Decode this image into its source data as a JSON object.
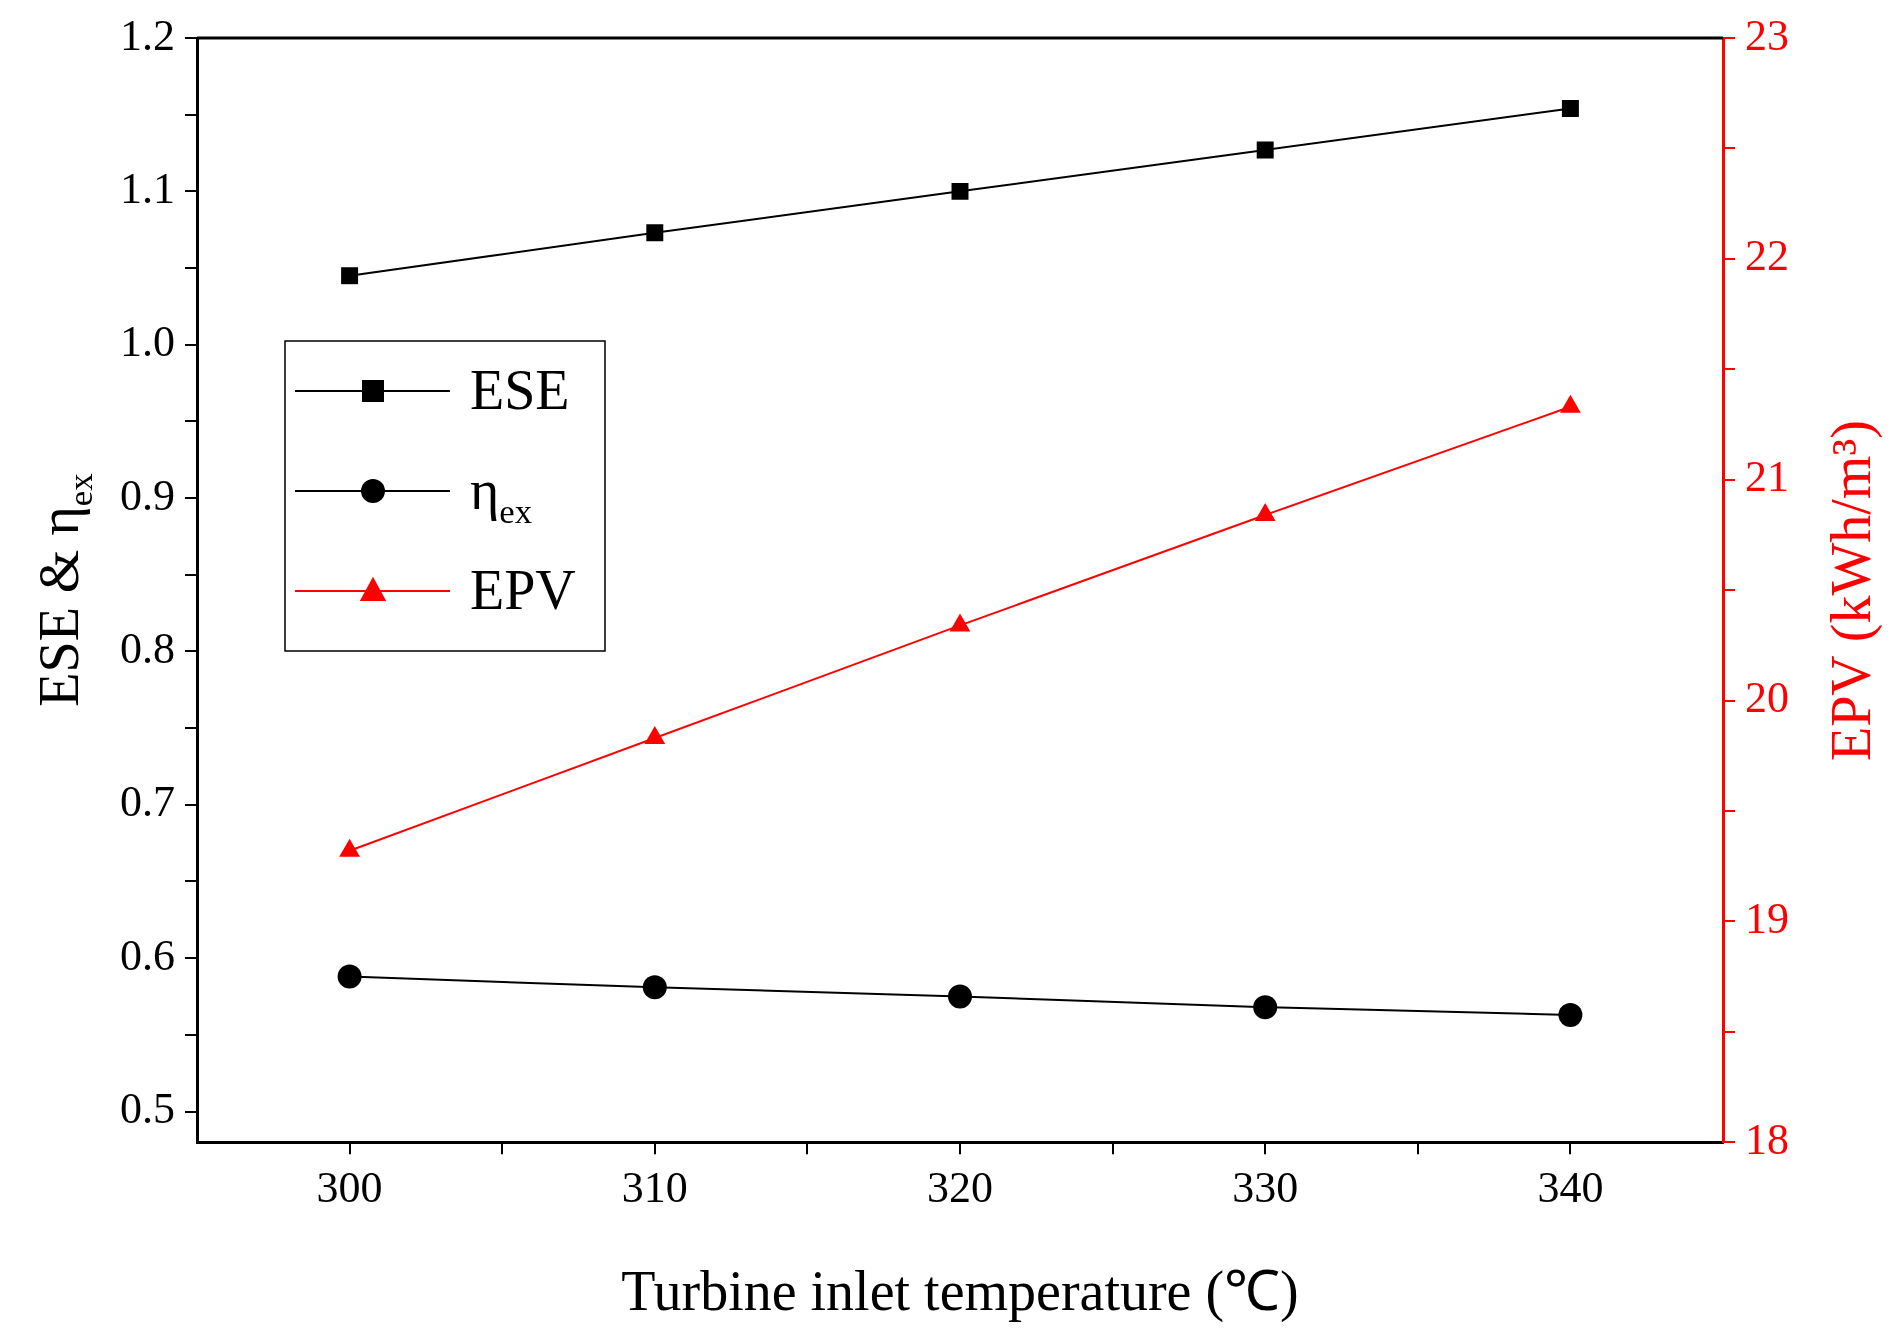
{
  "chart_data": {
    "type": "line",
    "xlabel": "Turbine inlet temperature (℃)",
    "ylabel": "ESE & η$_{ex}$",
    "y2label": "EPV (kWh/m³)",
    "x": [
      300,
      310,
      320,
      330,
      340
    ],
    "series": [
      {
        "name": "ESE",
        "color": "#000000",
        "marker": "square",
        "values": [
          1.045,
          1.073,
          1.1,
          1.127,
          1.154
        ]
      },
      {
        "name": "η$_{ex}$",
        "color": "#000000",
        "marker": "circle",
        "values": [
          0.588,
          0.581,
          0.575,
          0.568,
          0.563
        ]
      },
      {
        "name": "EPV",
        "color": "#ff0000",
        "marker": "triangle",
        "axis": "y2",
        "values": [
          19.32,
          19.83,
          20.34,
          20.84,
          21.33
        ]
      }
    ],
    "xlim": [
      295,
      345
    ],
    "xticks": [
      300,
      {
        "value": 305,
        "label": null
      },
      310,
      {
        "value": 315,
        "label": null
      },
      320,
      {
        "value": 325,
        "label": null
      },
      330,
      {
        "value": 335,
        "label": null
      },
      340
    ],
    "ylim": [
      0.48,
      1.2
    ],
    "yticks": [
      0.5,
      {
        "value": 0.55,
        "label": null
      },
      0.6,
      {
        "value": 0.65,
        "label": null
      },
      0.7,
      {
        "value": 0.75,
        "label": null
      },
      0.8,
      {
        "value": 0.85,
        "label": null
      },
      0.9,
      {
        "value": 0.95,
        "label": null
      },
      {
        "value": 1,
        "label": "1.0"
      },
      {
        "value": 1.05,
        "label": null
      },
      1.1,
      {
        "value": 1.15,
        "label": null
      },
      1.2
    ],
    "y2lim": [
      18,
      23
    ],
    "y2ticks": [
      18,
      {
        "value": 18.5,
        "label": null
      },
      19,
      {
        "value": 19.5,
        "label": null
      },
      20,
      {
        "value": 20.5,
        "label": null
      },
      21,
      {
        "value": 21.5,
        "label": null
      },
      22,
      {
        "value": 22.5,
        "label": null
      },
      23
    ],
    "grid": false,
    "legend": "top left",
    "line_style": "solid"
  }
}
